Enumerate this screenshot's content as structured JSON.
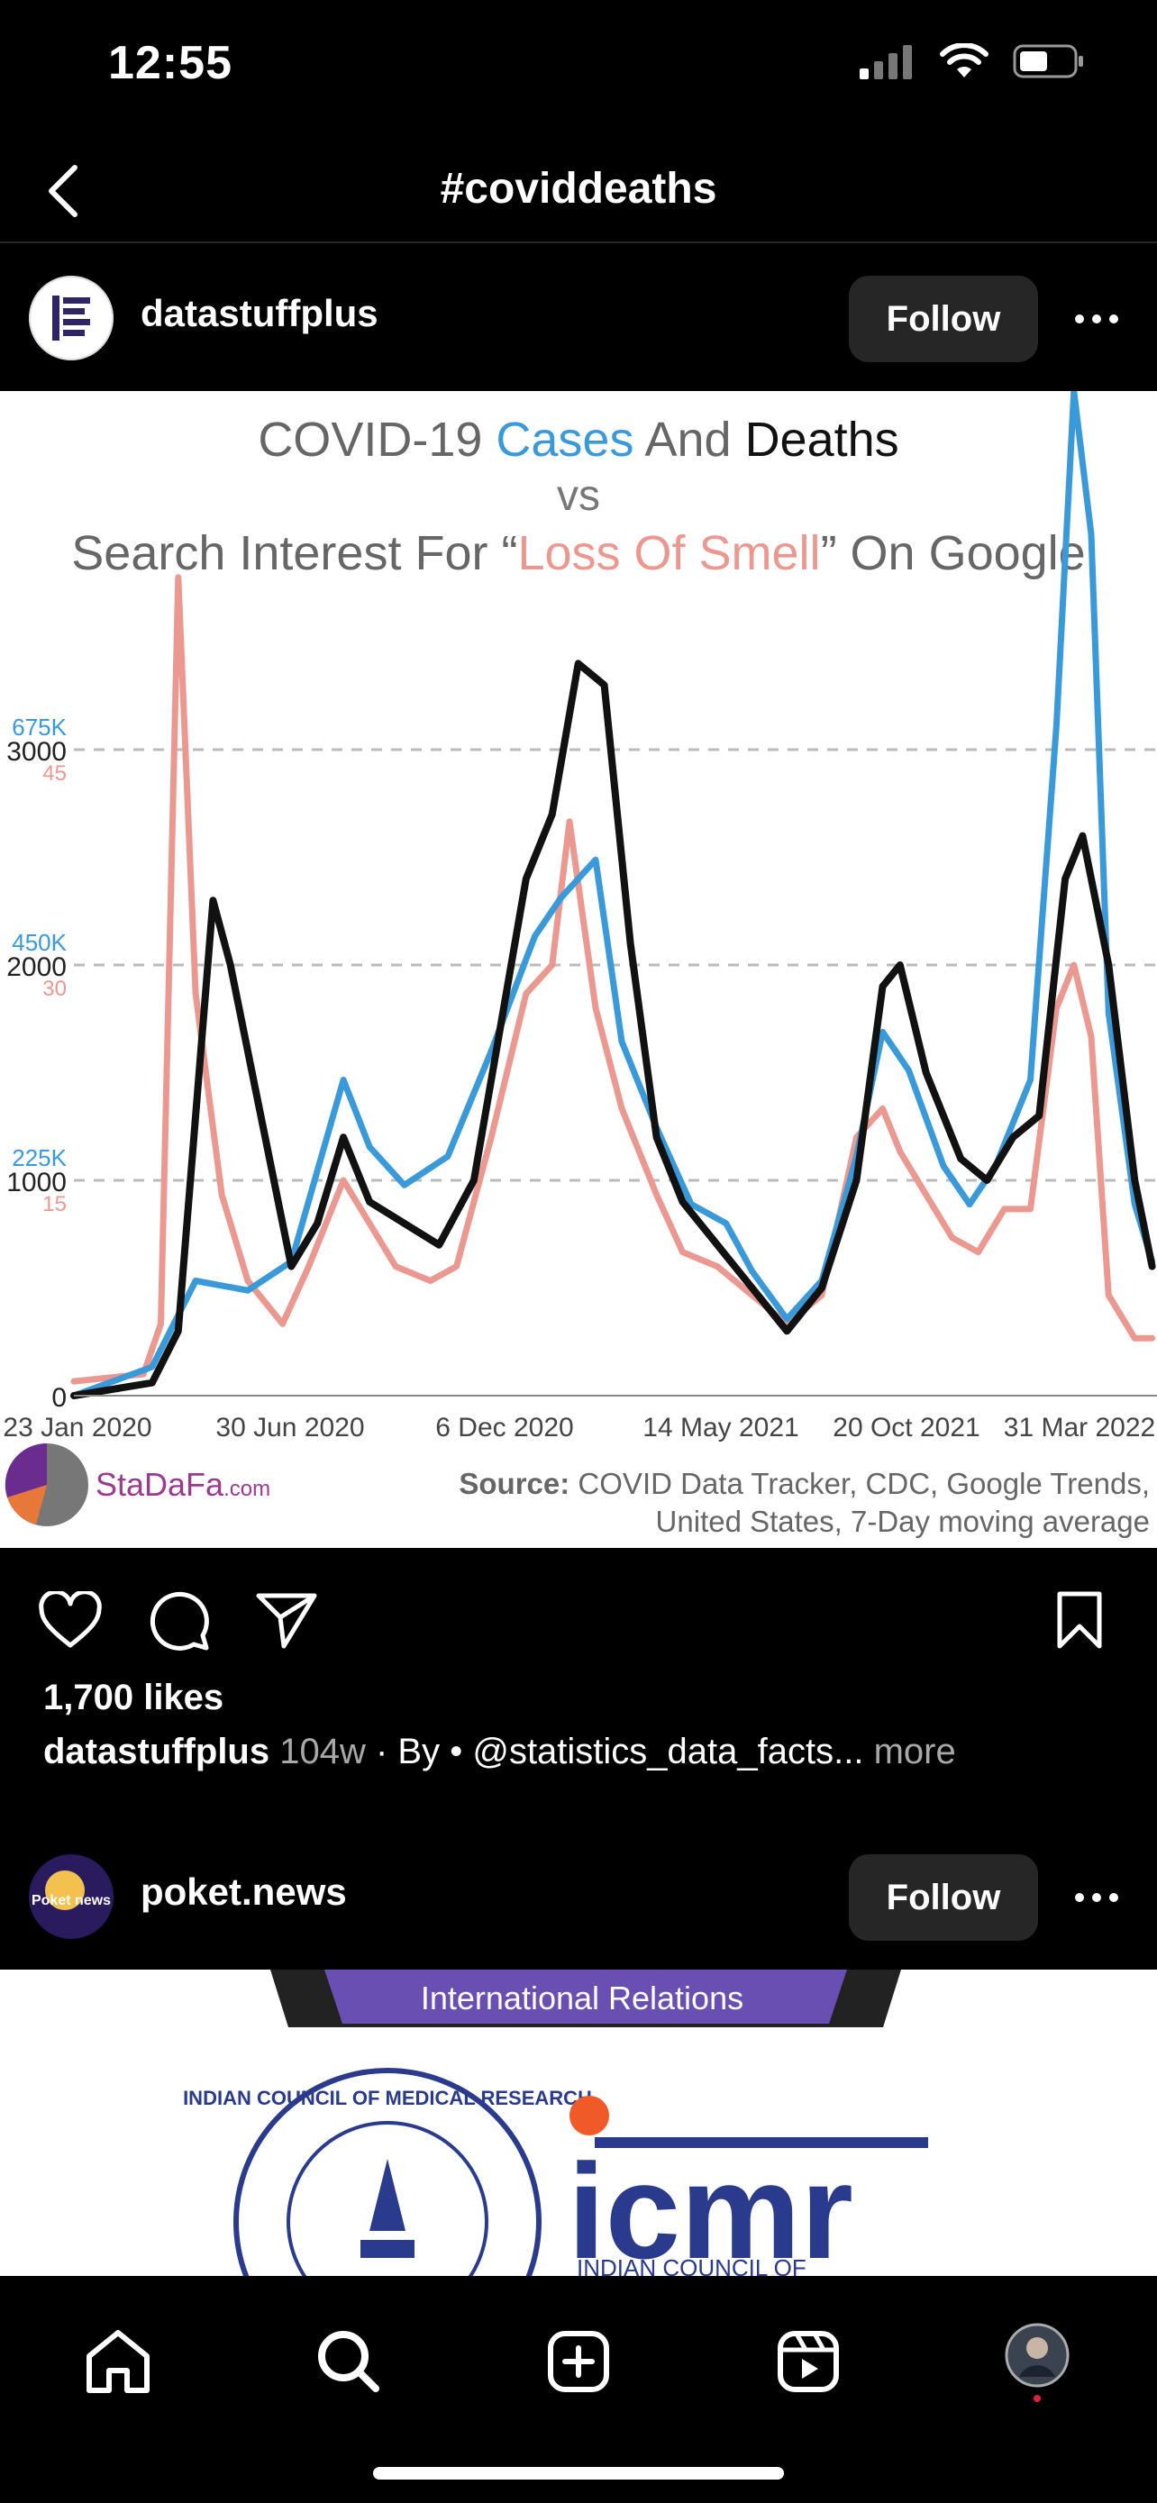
{
  "status_bar": {
    "time": "12:55"
  },
  "header": {
    "title": "#coviddeaths"
  },
  "post1": {
    "username": "datastuffplus",
    "follow_label": "Follow",
    "likes": "1,700 likes",
    "caption_user": "datastuffplus",
    "caption_time": "104w",
    "caption_text": " · By • @statistics_data_facts...",
    "caption_more": " more",
    "image": {
      "title_part1": "COVID-19 ",
      "title_cases": "Cases",
      "title_and": " And ",
      "title_deaths": "Deaths",
      "title_vs": "vs",
      "title_line3a": "Search Interest For “",
      "title_smell": "Loss Of Smell",
      "title_line3b": "” On Google",
      "brand": "StaDaFa",
      "brand_suffix": ".com",
      "source_label": "Source:",
      "source_text": " COVID Data Tracker, CDC, Google Trends,",
      "source_text2": "United States, 7-Day moving average",
      "colors": {
        "cases": "#3a9ad9",
        "deaths": "#111111",
        "smell": "#eb9990",
        "grid": "#bbbbbb"
      }
    }
  },
  "chart_data": {
    "type": "line",
    "x": [
      "23 Jan 2020",
      "30 Jun 2020",
      "6 Dec 2020",
      "14 May 2021",
      "20 Oct 2021",
      "31 Mar 2022"
    ],
    "y_ticks_deaths": [
      "0",
      "1000",
      "2000",
      "3000"
    ],
    "y_ticks_cases": [
      "225K",
      "450K",
      "675K"
    ],
    "y_ticks_smell": [
      "15",
      "30",
      "45"
    ],
    "ylim_deaths": [
      0,
      3000
    ],
    "series": [
      {
        "name": "Deaths",
        "axis": "deaths",
        "points": [
          [
            0,
            0
          ],
          [
            0.09,
            60
          ],
          [
            0.12,
            300
          ],
          [
            0.16,
            2300
          ],
          [
            0.18,
            2000
          ],
          [
            0.21,
            1400
          ],
          [
            0.25,
            600
          ],
          [
            0.28,
            800
          ],
          [
            0.31,
            1200
          ],
          [
            0.34,
            900
          ],
          [
            0.38,
            800
          ],
          [
            0.42,
            700
          ],
          [
            0.46,
            1000
          ],
          [
            0.52,
            2400
          ],
          [
            0.55,
            2700
          ],
          [
            0.58,
            3400
          ],
          [
            0.61,
            3300
          ],
          [
            0.64,
            2100
          ],
          [
            0.67,
            1200
          ],
          [
            0.7,
            900
          ],
          [
            0.74,
            700
          ],
          [
            0.78,
            500
          ],
          [
            0.82,
            300
          ],
          [
            0.86,
            500
          ],
          [
            0.9,
            1000
          ],
          [
            0.93,
            1900
          ],
          [
            0.95,
            2000
          ],
          [
            0.98,
            1500
          ],
          [
            1.02,
            1100
          ],
          [
            1.05,
            1000
          ],
          [
            1.08,
            1200
          ],
          [
            1.11,
            1300
          ],
          [
            1.14,
            2400
          ],
          [
            1.16,
            2600
          ],
          [
            1.19,
            2000
          ],
          [
            1.22,
            1000
          ],
          [
            1.24,
            600
          ]
        ]
      },
      {
        "name": "Cases",
        "axis": "cases",
        "points": [
          [
            0,
            0
          ],
          [
            0.09,
            30000
          ],
          [
            0.14,
            120000
          ],
          [
            0.2,
            110000
          ],
          [
            0.25,
            140000
          ],
          [
            0.31,
            330000
          ],
          [
            0.34,
            260000
          ],
          [
            0.38,
            220000
          ],
          [
            0.43,
            250000
          ],
          [
            0.48,
            360000
          ],
          [
            0.53,
            480000
          ],
          [
            0.56,
            520000
          ],
          [
            0.6,
            560000
          ],
          [
            0.63,
            370000
          ],
          [
            0.67,
            280000
          ],
          [
            0.71,
            200000
          ],
          [
            0.75,
            180000
          ],
          [
            0.78,
            130000
          ],
          [
            0.82,
            80000
          ],
          [
            0.86,
            120000
          ],
          [
            0.9,
            250000
          ],
          [
            0.93,
            380000
          ],
          [
            0.96,
            340000
          ],
          [
            1.0,
            240000
          ],
          [
            1.03,
            200000
          ],
          [
            1.06,
            240000
          ],
          [
            1.1,
            330000
          ],
          [
            1.13,
            700000
          ],
          [
            1.15,
            1100000
          ],
          [
            1.17,
            900000
          ],
          [
            1.19,
            400000
          ],
          [
            1.22,
            200000
          ],
          [
            1.24,
            140000
          ]
        ]
      },
      {
        "name": "Loss Of Smell",
        "axis": "smell",
        "points": [
          [
            0,
            1
          ],
          [
            0.08,
            1.5
          ],
          [
            0.1,
            5
          ],
          [
            0.12,
            57
          ],
          [
            0.14,
            28
          ],
          [
            0.17,
            14
          ],
          [
            0.2,
            8
          ],
          [
            0.24,
            5
          ],
          [
            0.27,
            9
          ],
          [
            0.31,
            15
          ],
          [
            0.34,
            12
          ],
          [
            0.37,
            9
          ],
          [
            0.41,
            8
          ],
          [
            0.44,
            9
          ],
          [
            0.48,
            18
          ],
          [
            0.52,
            28
          ],
          [
            0.55,
            30
          ],
          [
            0.57,
            40
          ],
          [
            0.6,
            27
          ],
          [
            0.63,
            20
          ],
          [
            0.67,
            14
          ],
          [
            0.7,
            10
          ],
          [
            0.74,
            9
          ],
          [
            0.78,
            7
          ],
          [
            0.82,
            5
          ],
          [
            0.86,
            7
          ],
          [
            0.9,
            18
          ],
          [
            0.93,
            20
          ],
          [
            0.95,
            17
          ],
          [
            0.98,
            14
          ],
          [
            1.01,
            11
          ],
          [
            1.04,
            10
          ],
          [
            1.07,
            13
          ],
          [
            1.1,
            13
          ],
          [
            1.13,
            27
          ],
          [
            1.15,
            30
          ],
          [
            1.17,
            25
          ],
          [
            1.19,
            7
          ],
          [
            1.22,
            4
          ],
          [
            1.24,
            4
          ]
        ]
      }
    ]
  },
  "post2": {
    "username": "poket.news",
    "follow_label": "Follow",
    "avatar_text": "Poket news",
    "banner": "International Relations",
    "logo_text": "icmr",
    "seal_text": "INDIAN COUNCIL OF MEDICAL RESEARCH",
    "logo_sub": "INDIAN COUNCIL OF"
  }
}
